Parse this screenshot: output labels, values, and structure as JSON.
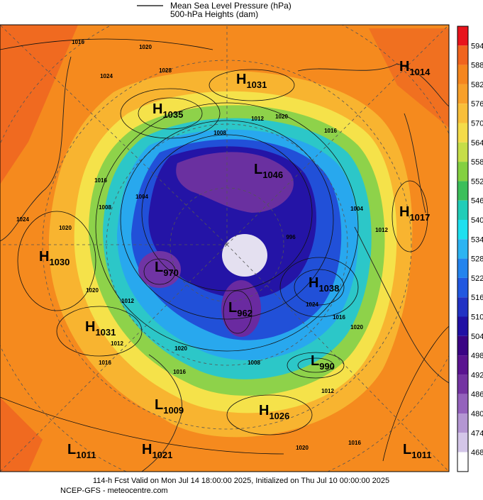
{
  "header": {
    "legend": [
      "Mean Sea Level Pressure (hPa)",
      "500-hPa Heights (dam)"
    ]
  },
  "colorbar": {
    "labels": [
      594,
      588,
      582,
      576,
      570,
      564,
      558,
      552,
      546,
      540,
      534,
      528,
      522,
      516,
      510,
      504,
      498,
      492,
      486,
      480,
      474,
      468
    ]
  },
  "centers": [
    {
      "letter": "H",
      "value": "1014"
    },
    {
      "letter": "H",
      "value": "1031"
    },
    {
      "letter": "H",
      "value": "1035"
    },
    {
      "letter": "L",
      "value": "1046"
    },
    {
      "letter": "H",
      "value": "1017"
    },
    {
      "letter": "H",
      "value": "1030"
    },
    {
      "letter": "L",
      "value": "970"
    },
    {
      "letter": "H",
      "value": "1038"
    },
    {
      "letter": "L",
      "value": "962"
    },
    {
      "letter": "H",
      "value": "1031"
    },
    {
      "letter": "L",
      "value": "990"
    },
    {
      "letter": "L",
      "value": "1009"
    },
    {
      "letter": "H",
      "value": "1026"
    },
    {
      "letter": "L",
      "value": "1011"
    },
    {
      "letter": "H",
      "value": "1021"
    },
    {
      "letter": "L",
      "value": "1011"
    }
  ],
  "contour_labels": [
    "1016",
    "1020",
    "1024",
    "1028",
    "1012",
    "1020",
    "1016",
    "1008",
    "1016",
    "1008",
    "1024",
    "1020",
    "1004",
    "1020",
    "1012",
    "1016",
    "1008",
    "1012",
    "1024",
    "1020",
    "1016",
    "1012",
    "1020",
    "1016",
    "1004",
    "996",
    "1012",
    "1016",
    "1020"
  ],
  "footer": {
    "line1": "114-h Fcst Valid on Mon Jul 14 18:00:00 2025, Initialized on Thu Jul 10 00:00:00 2025",
    "line2": "NCEP-GFS  -  meteocentre.com"
  }
}
